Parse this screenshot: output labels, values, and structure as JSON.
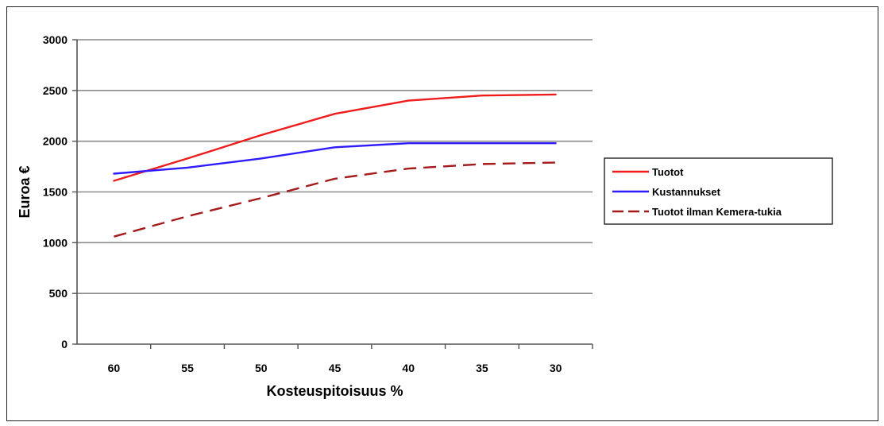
{
  "chart_data": {
    "type": "line",
    "title": "",
    "xlabel": "Kosteuspitoisuus %",
    "ylabel": "Euroa €",
    "categories": [
      "60",
      "55",
      "50",
      "45",
      "40",
      "35",
      "30"
    ],
    "ylim": [
      0,
      3000
    ],
    "yticks": [
      0,
      500,
      1000,
      1500,
      2000,
      2500,
      3000
    ],
    "grid": true,
    "legend_position": "right",
    "series": [
      {
        "name": "Tuotot",
        "values": [
          1610,
          1830,
          2060,
          2270,
          2400,
          2450,
          2460
        ],
        "color": "#ee1c1c",
        "dash": "solid"
      },
      {
        "name": "Kustannukset",
        "values": [
          1680,
          1740,
          1830,
          1940,
          1980,
          1980,
          1980
        ],
        "color": "#2e1cff",
        "dash": "solid"
      },
      {
        "name": "Tuotot ilman Kemera-tukia",
        "values": [
          1060,
          1260,
          1440,
          1630,
          1730,
          1775,
          1790
        ],
        "color": "#a51a1a",
        "dash": "dashed"
      }
    ]
  }
}
